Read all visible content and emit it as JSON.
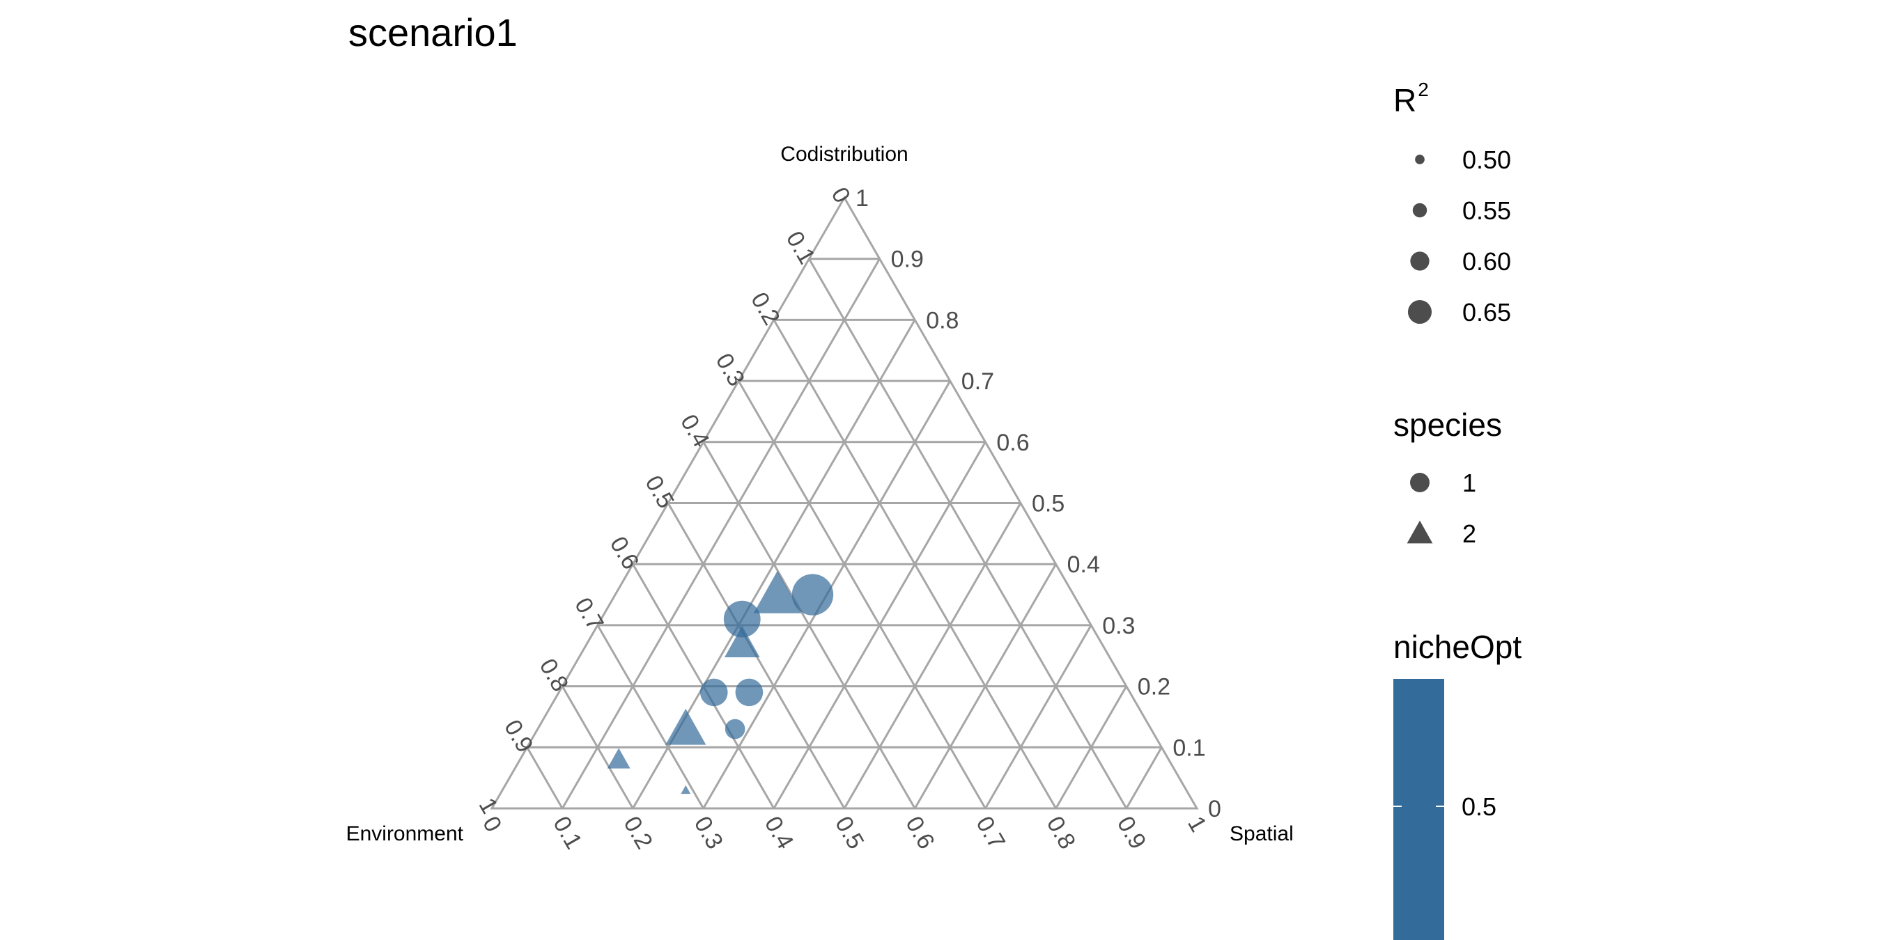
{
  "chart_data": {
    "type": "scatter",
    "subtype": "ternary",
    "title": "scenario1",
    "axes": {
      "top": "Codistribution",
      "left": "Environment",
      "right": "Spatial"
    },
    "ticks": [
      "0",
      "0.1",
      "0.2",
      "0.3",
      "0.4",
      "0.5",
      "0.6",
      "0.7",
      "0.8",
      "0.9",
      "1"
    ],
    "grid": true,
    "point_color": "#336b9a",
    "point_opacity": 0.7,
    "points": [
      {
        "species": 1,
        "r2": 0.67,
        "codistribution": 0.35,
        "spatial": 0.28,
        "environment": 0.37
      },
      {
        "species": 2,
        "r2": 0.67,
        "codistribution": 0.35,
        "spatial": 0.23,
        "environment": 0.42
      },
      {
        "species": 1,
        "r2": 0.64,
        "codistribution": 0.31,
        "spatial": 0.2,
        "environment": 0.49
      },
      {
        "species": 2,
        "r2": 0.6,
        "codistribution": 0.27,
        "spatial": 0.22,
        "environment": 0.51
      },
      {
        "species": 1,
        "r2": 0.58,
        "codistribution": 0.19,
        "spatial": 0.22,
        "environment": 0.59
      },
      {
        "species": 1,
        "r2": 0.58,
        "codistribution": 0.19,
        "spatial": 0.27,
        "environment": 0.54
      },
      {
        "species": 2,
        "r2": 0.63,
        "codistribution": 0.13,
        "spatial": 0.21,
        "environment": 0.66
      },
      {
        "species": 1,
        "r2": 0.53,
        "codistribution": 0.13,
        "spatial": 0.28,
        "environment": 0.59
      },
      {
        "species": 2,
        "r2": 0.53,
        "codistribution": 0.08,
        "spatial": 0.14,
        "environment": 0.78
      },
      {
        "species": 2,
        "r2": 0.43,
        "codistribution": 0.03,
        "spatial": 0.26,
        "environment": 0.71
      }
    ]
  },
  "legend": {
    "size": {
      "title": "R",
      "title_superscript": "2",
      "items": [
        {
          "label": "0.50",
          "value": 0.5
        },
        {
          "label": "0.55",
          "value": 0.55
        },
        {
          "label": "0.60",
          "value": 0.6
        },
        {
          "label": "0.65",
          "value": 0.65
        }
      ]
    },
    "shape": {
      "title": "species",
      "items": [
        {
          "label": "1",
          "shape": "circle"
        },
        {
          "label": "2",
          "shape": "triangle"
        }
      ]
    },
    "color": {
      "title": "nicheOpt",
      "bar_color": "#336b9a",
      "tick_label": "0.5"
    }
  }
}
